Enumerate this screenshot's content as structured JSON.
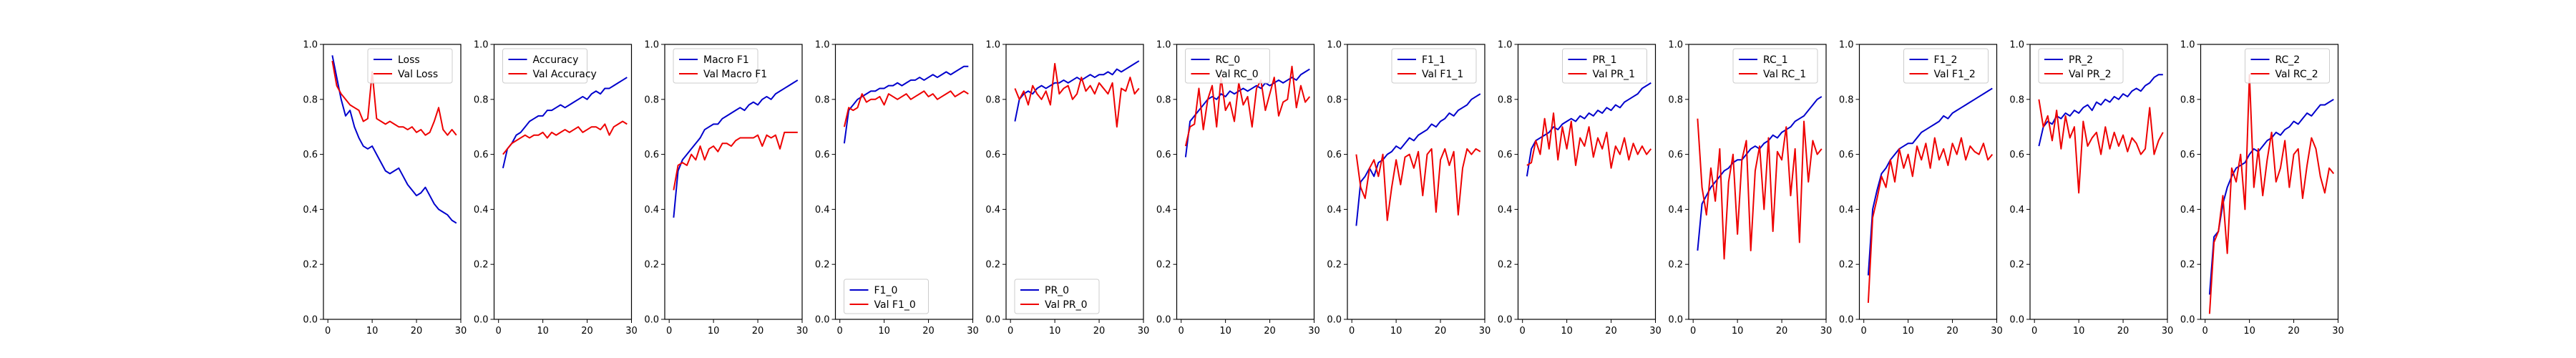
{
  "colors": {
    "train": "#0000cc",
    "val": "#ee0000",
    "axes": "#000000"
  },
  "chart_data": [
    {
      "type": "line",
      "legend_position": "top-right",
      "ylim": [
        0,
        1
      ],
      "xlim": [
        -1,
        30
      ],
      "yticks": [
        "0.0",
        "0.2",
        "0.4",
        "0.6",
        "0.8",
        "1.0"
      ],
      "xticks": [
        "0",
        "10",
        "20",
        "30"
      ],
      "series": [
        {
          "name": "Loss",
          "role": "train",
          "values": [
            0.96,
            0.88,
            0.8,
            0.74,
            0.76,
            0.7,
            0.66,
            0.63,
            0.62,
            0.63,
            0.6,
            0.57,
            0.54,
            0.53,
            0.54,
            0.55,
            0.52,
            0.49,
            0.47,
            0.45,
            0.46,
            0.48,
            0.45,
            0.42,
            0.4,
            0.39,
            0.38,
            0.36,
            0.35
          ]
        },
        {
          "name": "Val Loss",
          "role": "val",
          "values": [
            0.94,
            0.85,
            0.82,
            0.8,
            0.78,
            0.77,
            0.76,
            0.72,
            0.73,
            0.9,
            0.73,
            0.72,
            0.71,
            0.72,
            0.71,
            0.7,
            0.7,
            0.69,
            0.7,
            0.68,
            0.69,
            0.67,
            0.68,
            0.72,
            0.77,
            0.69,
            0.67,
            0.69,
            0.67
          ]
        }
      ]
    },
    {
      "type": "line",
      "legend_position": "top-left",
      "ylim": [
        0,
        1
      ],
      "xlim": [
        -1,
        30
      ],
      "yticks": [
        "0.0",
        "0.2",
        "0.4",
        "0.6",
        "0.8",
        "1.0"
      ],
      "xticks": [
        "0",
        "10",
        "20",
        "30"
      ],
      "series": [
        {
          "name": "Accuracy",
          "role": "train",
          "values": [
            0.55,
            0.62,
            0.64,
            0.67,
            0.68,
            0.7,
            0.72,
            0.73,
            0.74,
            0.74,
            0.76,
            0.76,
            0.77,
            0.78,
            0.77,
            0.78,
            0.79,
            0.8,
            0.81,
            0.8,
            0.82,
            0.83,
            0.82,
            0.84,
            0.84,
            0.85,
            0.86,
            0.87,
            0.88
          ]
        },
        {
          "name": "Val Accuracy",
          "role": "val",
          "values": [
            0.6,
            0.62,
            0.64,
            0.65,
            0.66,
            0.67,
            0.66,
            0.67,
            0.67,
            0.68,
            0.66,
            0.68,
            0.67,
            0.68,
            0.69,
            0.68,
            0.69,
            0.7,
            0.68,
            0.69,
            0.7,
            0.7,
            0.69,
            0.71,
            0.67,
            0.7,
            0.71,
            0.72,
            0.71
          ]
        }
      ]
    },
    {
      "type": "line",
      "legend_position": "top-left",
      "ylim": [
        0,
        1
      ],
      "xlim": [
        -1,
        30
      ],
      "yticks": [
        "0.0",
        "0.2",
        "0.4",
        "0.6",
        "0.8",
        "1.0"
      ],
      "xticks": [
        "0",
        "10",
        "20",
        "30"
      ],
      "series": [
        {
          "name": "Macro F1",
          "role": "train",
          "values": [
            0.37,
            0.54,
            0.58,
            0.6,
            0.62,
            0.64,
            0.66,
            0.69,
            0.7,
            0.71,
            0.71,
            0.73,
            0.74,
            0.75,
            0.76,
            0.77,
            0.76,
            0.78,
            0.79,
            0.78,
            0.8,
            0.81,
            0.8,
            0.82,
            0.83,
            0.84,
            0.85,
            0.86,
            0.87
          ]
        },
        {
          "name": "Val Macro F1",
          "role": "val",
          "values": [
            0.47,
            0.56,
            0.57,
            0.56,
            0.6,
            0.58,
            0.63,
            0.58,
            0.62,
            0.63,
            0.61,
            0.64,
            0.64,
            0.63,
            0.65,
            0.66,
            0.66,
            0.66,
            0.66,
            0.67,
            0.63,
            0.67,
            0.66,
            0.67,
            0.62,
            0.68,
            0.68,
            0.68,
            0.68
          ]
        }
      ]
    },
    {
      "type": "line",
      "legend_position": "bottom-left",
      "ylim": [
        0,
        1
      ],
      "xlim": [
        -1,
        30
      ],
      "yticks": [
        "0.0",
        "0.2",
        "0.4",
        "0.6",
        "0.8",
        "1.0"
      ],
      "xticks": [
        "0",
        "10",
        "20",
        "30"
      ],
      "series": [
        {
          "name": "F1_0",
          "role": "train",
          "values": [
            0.64,
            0.76,
            0.78,
            0.8,
            0.81,
            0.82,
            0.83,
            0.83,
            0.84,
            0.84,
            0.85,
            0.85,
            0.86,
            0.85,
            0.86,
            0.87,
            0.87,
            0.88,
            0.87,
            0.88,
            0.89,
            0.88,
            0.89,
            0.9,
            0.89,
            0.9,
            0.91,
            0.92,
            0.92
          ]
        },
        {
          "name": "Val F1_0",
          "role": "val",
          "values": [
            0.7,
            0.77,
            0.76,
            0.77,
            0.82,
            0.79,
            0.8,
            0.8,
            0.81,
            0.78,
            0.82,
            0.81,
            0.8,
            0.81,
            0.82,
            0.8,
            0.81,
            0.82,
            0.83,
            0.81,
            0.82,
            0.8,
            0.81,
            0.82,
            0.83,
            0.81,
            0.82,
            0.83,
            0.82
          ]
        }
      ]
    },
    {
      "type": "line",
      "legend_position": "bottom-left",
      "ylim": [
        0,
        1
      ],
      "xlim": [
        -1,
        30
      ],
      "yticks": [
        "0.0",
        "0.2",
        "0.4",
        "0.6",
        "0.8",
        "1.0"
      ],
      "xticks": [
        "0",
        "10",
        "20",
        "30"
      ],
      "series": [
        {
          "name": "PR_0",
          "role": "train",
          "values": [
            0.72,
            0.8,
            0.82,
            0.83,
            0.82,
            0.84,
            0.85,
            0.84,
            0.85,
            0.86,
            0.86,
            0.87,
            0.86,
            0.87,
            0.88,
            0.87,
            0.88,
            0.89,
            0.88,
            0.89,
            0.89,
            0.9,
            0.89,
            0.91,
            0.9,
            0.91,
            0.92,
            0.93,
            0.94
          ]
        },
        {
          "name": "Val PR_0",
          "role": "val",
          "values": [
            0.84,
            0.8,
            0.83,
            0.78,
            0.85,
            0.82,
            0.8,
            0.83,
            0.78,
            0.93,
            0.82,
            0.84,
            0.85,
            0.8,
            0.82,
            0.88,
            0.83,
            0.85,
            0.82,
            0.86,
            0.84,
            0.82,
            0.86,
            0.7,
            0.84,
            0.83,
            0.88,
            0.82,
            0.84
          ]
        }
      ]
    },
    {
      "type": "line",
      "legend_position": "top-left",
      "ylim": [
        0,
        1
      ],
      "xlim": [
        -1,
        30
      ],
      "yticks": [
        "0.0",
        "0.2",
        "0.4",
        "0.6",
        "0.8",
        "1.0"
      ],
      "xticks": [
        "0",
        "10",
        "20",
        "30"
      ],
      "series": [
        {
          "name": "RC_0",
          "role": "train",
          "values": [
            0.59,
            0.72,
            0.74,
            0.76,
            0.78,
            0.8,
            0.81,
            0.8,
            0.82,
            0.81,
            0.83,
            0.82,
            0.83,
            0.84,
            0.83,
            0.84,
            0.85,
            0.84,
            0.86,
            0.85,
            0.86,
            0.87,
            0.86,
            0.87,
            0.88,
            0.87,
            0.89,
            0.9,
            0.91
          ]
        },
        {
          "name": "Val RC_0",
          "role": "val",
          "values": [
            0.63,
            0.7,
            0.71,
            0.84,
            0.69,
            0.8,
            0.85,
            0.7,
            0.88,
            0.76,
            0.79,
            0.72,
            0.86,
            0.78,
            0.81,
            0.7,
            0.84,
            0.87,
            0.76,
            0.82,
            0.88,
            0.74,
            0.79,
            0.8,
            0.92,
            0.77,
            0.85,
            0.79,
            0.81
          ]
        }
      ]
    },
    {
      "type": "line",
      "legend_position": "top-right",
      "ylim": [
        0,
        1
      ],
      "xlim": [
        -1,
        30
      ],
      "yticks": [
        "0.0",
        "0.2",
        "0.4",
        "0.6",
        "0.8",
        "1.0"
      ],
      "xticks": [
        "0",
        "10",
        "20",
        "30"
      ],
      "series": [
        {
          "name": "F1_1",
          "role": "train",
          "values": [
            0.34,
            0.5,
            0.52,
            0.55,
            0.52,
            0.57,
            0.58,
            0.6,
            0.61,
            0.63,
            0.62,
            0.64,
            0.66,
            0.65,
            0.67,
            0.68,
            0.69,
            0.71,
            0.7,
            0.72,
            0.73,
            0.75,
            0.74,
            0.76,
            0.77,
            0.78,
            0.8,
            0.81,
            0.82
          ]
        },
        {
          "name": "Val F1_1",
          "role": "val",
          "values": [
            0.6,
            0.48,
            0.44,
            0.55,
            0.58,
            0.52,
            0.6,
            0.36,
            0.48,
            0.58,
            0.49,
            0.59,
            0.6,
            0.55,
            0.61,
            0.45,
            0.6,
            0.62,
            0.39,
            0.58,
            0.62,
            0.56,
            0.61,
            0.38,
            0.55,
            0.62,
            0.6,
            0.62,
            0.61
          ]
        }
      ]
    },
    {
      "type": "line",
      "legend_position": "top-right",
      "ylim": [
        0,
        1
      ],
      "xlim": [
        -1,
        30
      ],
      "yticks": [
        "0.0",
        "0.2",
        "0.4",
        "0.6",
        "0.8",
        "1.0"
      ],
      "xticks": [
        "0",
        "10",
        "20",
        "30"
      ],
      "series": [
        {
          "name": "PR_1",
          "role": "train",
          "values": [
            0.52,
            0.62,
            0.65,
            0.66,
            0.67,
            0.68,
            0.7,
            0.69,
            0.71,
            0.72,
            0.73,
            0.72,
            0.74,
            0.73,
            0.75,
            0.74,
            0.76,
            0.75,
            0.77,
            0.76,
            0.78,
            0.77,
            0.79,
            0.8,
            0.81,
            0.82,
            0.84,
            0.85,
            0.86
          ]
        },
        {
          "name": "Val PR_1",
          "role": "val",
          "values": [
            0.56,
            0.57,
            0.65,
            0.6,
            0.73,
            0.62,
            0.75,
            0.58,
            0.7,
            0.62,
            0.72,
            0.56,
            0.66,
            0.63,
            0.7,
            0.59,
            0.66,
            0.62,
            0.68,
            0.55,
            0.63,
            0.6,
            0.66,
            0.58,
            0.64,
            0.6,
            0.63,
            0.6,
            0.62
          ]
        }
      ]
    },
    {
      "type": "line",
      "legend_position": "top-right",
      "ylim": [
        0,
        1
      ],
      "xlim": [
        -1,
        30
      ],
      "yticks": [
        "0.0",
        "0.2",
        "0.4",
        "0.6",
        "0.8",
        "1.0"
      ],
      "xticks": [
        "0",
        "10",
        "20",
        "30"
      ],
      "series": [
        {
          "name": "RC_1",
          "role": "train",
          "values": [
            0.25,
            0.42,
            0.45,
            0.48,
            0.5,
            0.52,
            0.54,
            0.55,
            0.57,
            0.58,
            0.58,
            0.6,
            0.62,
            0.63,
            0.62,
            0.64,
            0.65,
            0.67,
            0.66,
            0.68,
            0.69,
            0.7,
            0.72,
            0.73,
            0.74,
            0.76,
            0.78,
            0.8,
            0.81
          ]
        },
        {
          "name": "Val RC_1",
          "role": "val",
          "values": [
            0.73,
            0.48,
            0.38,
            0.55,
            0.43,
            0.62,
            0.22,
            0.5,
            0.6,
            0.31,
            0.58,
            0.65,
            0.25,
            0.54,
            0.63,
            0.4,
            0.66,
            0.32,
            0.61,
            0.58,
            0.7,
            0.45,
            0.62,
            0.28,
            0.72,
            0.5,
            0.65,
            0.6,
            0.62
          ]
        }
      ]
    },
    {
      "type": "line",
      "legend_position": "top-right",
      "ylim": [
        0,
        1
      ],
      "xlim": [
        -1,
        30
      ],
      "yticks": [
        "0.0",
        "0.2",
        "0.4",
        "0.6",
        "0.8",
        "1.0"
      ],
      "xticks": [
        "0",
        "10",
        "20",
        "30"
      ],
      "series": [
        {
          "name": "F1_2",
          "role": "train",
          "values": [
            0.16,
            0.4,
            0.47,
            0.53,
            0.55,
            0.58,
            0.6,
            0.62,
            0.63,
            0.64,
            0.64,
            0.66,
            0.68,
            0.69,
            0.7,
            0.71,
            0.72,
            0.74,
            0.73,
            0.75,
            0.76,
            0.77,
            0.78,
            0.79,
            0.8,
            0.81,
            0.82,
            0.83,
            0.84
          ]
        },
        {
          "name": "Val F1_2",
          "role": "val",
          "values": [
            0.06,
            0.37,
            0.44,
            0.52,
            0.48,
            0.58,
            0.5,
            0.62,
            0.55,
            0.6,
            0.52,
            0.63,
            0.58,
            0.64,
            0.55,
            0.66,
            0.58,
            0.62,
            0.56,
            0.64,
            0.6,
            0.66,
            0.58,
            0.63,
            0.61,
            0.6,
            0.64,
            0.58,
            0.6
          ]
        }
      ]
    },
    {
      "type": "line",
      "legend_position": "top-left",
      "ylim": [
        0,
        1
      ],
      "xlim": [
        -1,
        30
      ],
      "yticks": [
        "0.0",
        "0.2",
        "0.4",
        "0.6",
        "0.8",
        "1.0"
      ],
      "xticks": [
        "0",
        "10",
        "20",
        "30"
      ],
      "series": [
        {
          "name": "PR_2",
          "role": "train",
          "values": [
            0.63,
            0.7,
            0.72,
            0.71,
            0.74,
            0.73,
            0.75,
            0.74,
            0.76,
            0.75,
            0.77,
            0.78,
            0.76,
            0.79,
            0.78,
            0.8,
            0.79,
            0.81,
            0.8,
            0.82,
            0.81,
            0.83,
            0.84,
            0.83,
            0.85,
            0.86,
            0.88,
            0.89,
            0.89
          ]
        },
        {
          "name": "Val PR_2",
          "role": "val",
          "values": [
            0.8,
            0.7,
            0.74,
            0.65,
            0.76,
            0.62,
            0.74,
            0.66,
            0.7,
            0.46,
            0.72,
            0.63,
            0.66,
            0.68,
            0.6,
            0.7,
            0.62,
            0.68,
            0.63,
            0.67,
            0.61,
            0.66,
            0.64,
            0.6,
            0.62,
            0.77,
            0.6,
            0.65,
            0.68
          ]
        }
      ]
    },
    {
      "type": "line",
      "legend_position": "top-right",
      "ylim": [
        0,
        1
      ],
      "xlim": [
        -1,
        30
      ],
      "yticks": [
        "0.0",
        "0.2",
        "0.4",
        "0.6",
        "0.8",
        "1.0"
      ],
      "xticks": [
        "0",
        "10",
        "20",
        "30"
      ],
      "series": [
        {
          "name": "RC_2",
          "role": "train",
          "values": [
            0.09,
            0.3,
            0.32,
            0.42,
            0.48,
            0.52,
            0.55,
            0.56,
            0.57,
            0.6,
            0.62,
            0.61,
            0.63,
            0.65,
            0.66,
            0.68,
            0.67,
            0.69,
            0.7,
            0.72,
            0.71,
            0.73,
            0.75,
            0.74,
            0.76,
            0.78,
            0.78,
            0.79,
            0.8
          ]
        },
        {
          "name": "Val RC_2",
          "role": "val",
          "values": [
            0.02,
            0.28,
            0.32,
            0.45,
            0.24,
            0.55,
            0.5,
            0.6,
            0.4,
            0.89,
            0.48,
            0.62,
            0.45,
            0.58,
            0.68,
            0.5,
            0.55,
            0.65,
            0.48,
            0.6,
            0.62,
            0.44,
            0.56,
            0.66,
            0.62,
            0.52,
            0.46,
            0.55,
            0.53
          ]
        }
      ]
    }
  ]
}
